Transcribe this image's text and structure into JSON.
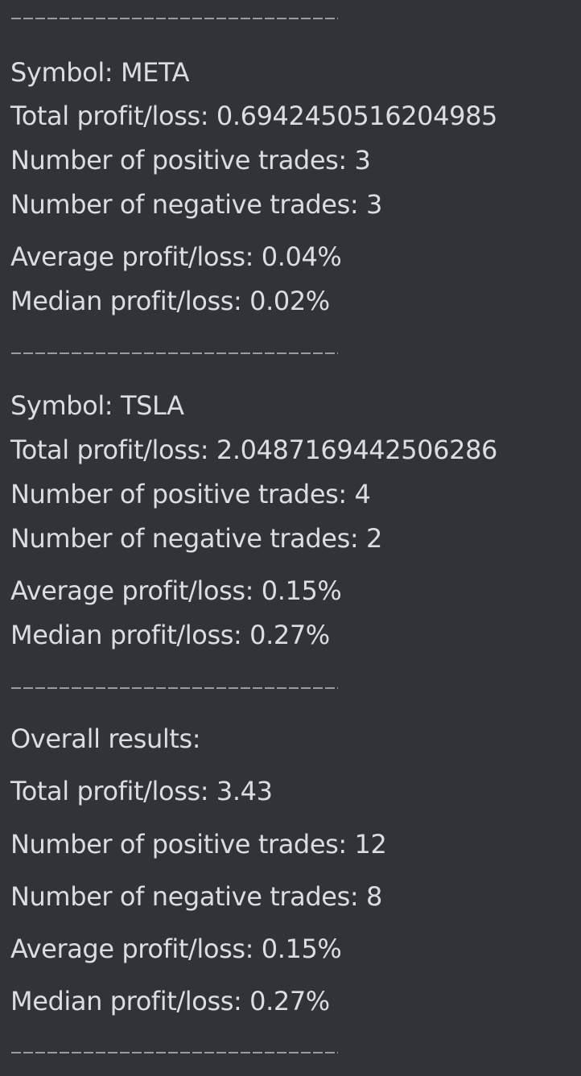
{
  "separator": "------------------------",
  "blocks": [
    {
      "symbol": "Symbol: META",
      "total": "Total profit/loss: 0.6942450516204985",
      "positive": "Number of positive trades: 3",
      "negative": "Number of negative trades: 3",
      "average": "Average profit/loss: 0.04%",
      "median": "Median profit/loss: 0.02%"
    },
    {
      "symbol": "Symbol: TSLA",
      "total": "Total profit/loss: 2.0487169442506286",
      "positive": "Number of positive trades: 4",
      "negative": "Number of negative trades: 2",
      "average": "Average profit/loss: 0.15%",
      "median": "Median profit/loss: 0.27%"
    }
  ],
  "overall": {
    "heading": "Overall results:",
    "total": "Total profit/loss: 3.43",
    "positive": "Number of positive trades: 12",
    "negative": "Number of negative trades: 8",
    "average": "Average profit/loss: 0.15%",
    "median": "Median profit/loss: 0.27%"
  }
}
